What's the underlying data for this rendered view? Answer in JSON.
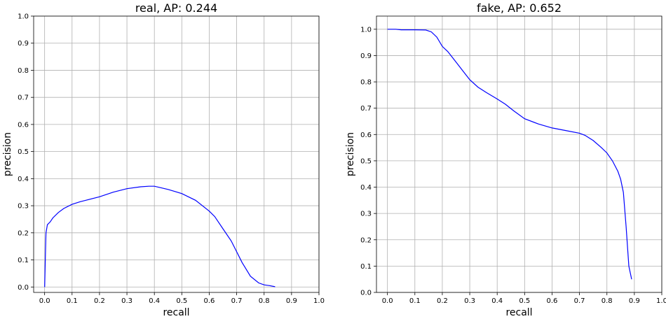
{
  "chart_data": [
    {
      "type": "line",
      "title": "real, AP: 0.244",
      "xlabel": "recall",
      "ylabel": "precision",
      "xlim": [
        -0.04,
        1.0
      ],
      "ylim": [
        -0.02,
        1.0
      ],
      "xticks": [
        "0.0",
        "0.1",
        "0.2",
        "0.3",
        "0.4",
        "0.5",
        "0.6",
        "0.7",
        "0.8",
        "0.9",
        "1.0"
      ],
      "yticks": [
        "0.0",
        "0.1",
        "0.2",
        "0.3",
        "0.4",
        "0.5",
        "0.6",
        "0.7",
        "0.8",
        "0.9",
        "1.0"
      ],
      "grid": true,
      "color": "#0000ff",
      "series": [
        {
          "x": [
            0.0,
            0.003,
            0.005,
            0.01,
            0.02,
            0.03,
            0.05,
            0.07,
            0.1,
            0.13,
            0.15,
            0.2,
            0.25,
            0.3,
            0.35,
            0.38,
            0.4,
            0.45,
            0.5,
            0.55,
            0.6,
            0.62,
            0.65,
            0.68,
            0.7,
            0.72,
            0.75,
            0.78,
            0.8,
            0.82,
            0.84
          ],
          "y": [
            0.0,
            0.12,
            0.2,
            0.23,
            0.24,
            0.255,
            0.275,
            0.29,
            0.305,
            0.315,
            0.32,
            0.333,
            0.35,
            0.363,
            0.37,
            0.372,
            0.372,
            0.36,
            0.345,
            0.32,
            0.28,
            0.26,
            0.215,
            0.17,
            0.13,
            0.09,
            0.04,
            0.015,
            0.008,
            0.005,
            0.001
          ]
        }
      ]
    },
    {
      "type": "line",
      "title": "fake, AP: 0.652",
      "xlabel": "recall",
      "ylabel": "precision",
      "xlim": [
        -0.04,
        1.0
      ],
      "ylim": [
        0.0,
        1.05
      ],
      "xticks": [
        "0.0",
        "0.1",
        "0.2",
        "0.3",
        "0.4",
        "0.5",
        "0.6",
        "0.7",
        "0.8",
        "0.9",
        "1.0"
      ],
      "yticks": [
        "0.0",
        "0.1",
        "0.2",
        "0.3",
        "0.4",
        "0.5",
        "0.6",
        "0.7",
        "0.8",
        "0.9",
        "1.0"
      ],
      "grid": true,
      "color": "#0000ff",
      "series": [
        {
          "x": [
            0.0,
            0.03,
            0.05,
            0.1,
            0.14,
            0.16,
            0.18,
            0.2,
            0.22,
            0.25,
            0.28,
            0.3,
            0.33,
            0.36,
            0.4,
            0.43,
            0.46,
            0.5,
            0.55,
            0.6,
            0.65,
            0.7,
            0.72,
            0.75,
            0.78,
            0.8,
            0.82,
            0.84,
            0.85,
            0.86,
            0.87,
            0.88,
            0.89
          ],
          "y": [
            1.0,
            1.0,
            0.998,
            0.998,
            0.997,
            0.99,
            0.97,
            0.935,
            0.915,
            0.875,
            0.835,
            0.808,
            0.78,
            0.76,
            0.735,
            0.715,
            0.69,
            0.66,
            0.64,
            0.625,
            0.615,
            0.605,
            0.597,
            0.577,
            0.55,
            0.53,
            0.5,
            0.46,
            0.43,
            0.38,
            0.25,
            0.1,
            0.05
          ]
        }
      ]
    }
  ]
}
